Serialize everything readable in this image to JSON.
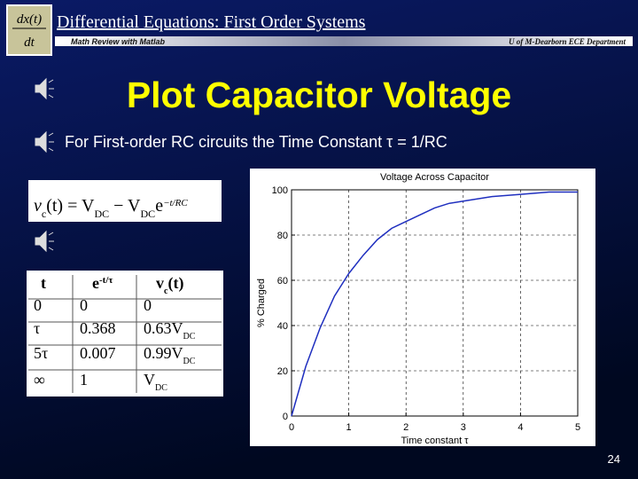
{
  "header": {
    "icon_top": "dx(t)",
    "icon_bottom": "dt",
    "title": "Differential Equations:  First Order Systems",
    "left_caption": "Math Review with Matlab",
    "right_caption": "U of M-Dearborn ECE Department"
  },
  "slide": {
    "title": "Plot Capacitor Voltage",
    "subtitle": "For First-order RC circuits the Time Constant τ = 1/RC",
    "page_number": "24"
  },
  "equation": [
    {
      "text": "v",
      "pos": "base"
    },
    {
      "text": "c",
      "pos": "sub"
    },
    {
      "text": "(t) = V",
      "pos": "base"
    },
    {
      "text": "DC",
      "pos": "sub"
    },
    {
      "text": " − V",
      "pos": "base"
    },
    {
      "text": "DC",
      "pos": "sub"
    },
    {
      "text": "e",
      "pos": "base"
    },
    {
      "text": "−t/RC",
      "pos": "sup"
    }
  ],
  "table": {
    "header": [
      {
        "text": "t"
      },
      {
        "text": "e",
        "sup": "-t/τ"
      },
      {
        "text": "v",
        "sub": "c",
        "rest": "(t)"
      }
    ],
    "rows": [
      [
        {
          "text": "0"
        },
        {
          "text": "0"
        },
        {
          "text": "0"
        }
      ],
      [
        {
          "text": "τ"
        },
        {
          "text": "0.368"
        },
        {
          "text": "0.63V",
          "sub": "DC"
        }
      ],
      [
        {
          "text": "5τ"
        },
        {
          "text": "0.007"
        },
        {
          "text": "0.99V",
          "sub": "DC"
        }
      ],
      [
        {
          "text": "∞"
        },
        {
          "text": "1"
        },
        {
          "text": "V",
          "sub": "DC"
        }
      ]
    ]
  },
  "chart_data": {
    "type": "line",
    "title": "Voltage Across Capacitor",
    "x_label": "Time constant τ",
    "y_label": "% Charged",
    "x": [
      0,
      0.25,
      0.5,
      0.75,
      1,
      1.25,
      1.5,
      1.75,
      2,
      2.25,
      2.5,
      2.75,
      3,
      3.5,
      4,
      4.5,
      5
    ],
    "series": [
      {
        "name": "% Charged",
        "color": "#1f2fbf",
        "values": [
          0,
          22,
          39,
          53,
          63,
          71,
          78,
          83,
          86,
          89,
          92,
          94,
          95,
          97,
          98,
          99,
          99
        ]
      }
    ],
    "xlim": [
      0,
      5
    ],
    "ylim": [
      0,
      100
    ],
    "xticks": [
      0,
      1,
      2,
      3,
      4,
      5
    ],
    "yticks": [
      0,
      20,
      40,
      60,
      80,
      100
    ],
    "grid": true
  }
}
